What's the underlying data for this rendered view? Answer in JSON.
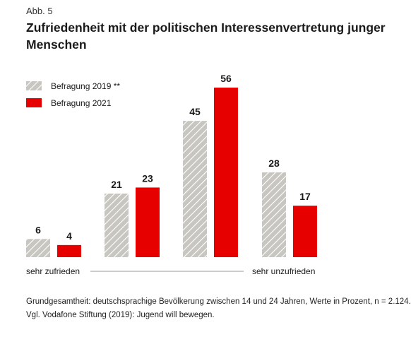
{
  "figure_label": "Abb. 5",
  "chart_data": {
    "type": "bar",
    "title": "Zufriedenheit mit der politischen Interessenvertretung junger Menschen",
    "categories": [
      "",
      "",
      "",
      ""
    ],
    "series": [
      {
        "name": "Befragung 2019 **",
        "values": [
          6,
          21,
          45,
          28
        ],
        "style": "hatched-gray"
      },
      {
        "name": "Befragung 2021",
        "values": [
          4,
          23,
          56,
          17
        ],
        "style": "solid-red"
      }
    ],
    "scale_labels": {
      "left": "sehr zufrieden",
      "right": "sehr unzufrieden"
    },
    "xlabel": "",
    "ylabel": "",
    "ylim": [
      0,
      56
    ],
    "grid": false,
    "legend_position": "top-left",
    "colors": {
      "series_2019": "#c8c6c0",
      "series_2019_hatch": "#ffffff",
      "series_2021": "#e60000"
    }
  },
  "footnotes": [
    "Grundgesamtheit: deutschsprachige Bevölkerung zwischen 14 und 24 Jahren, Werte in Prozent, n = 2.124.",
    "Vgl. Vodafone Stiftung (2019): Jugend will bewegen."
  ]
}
